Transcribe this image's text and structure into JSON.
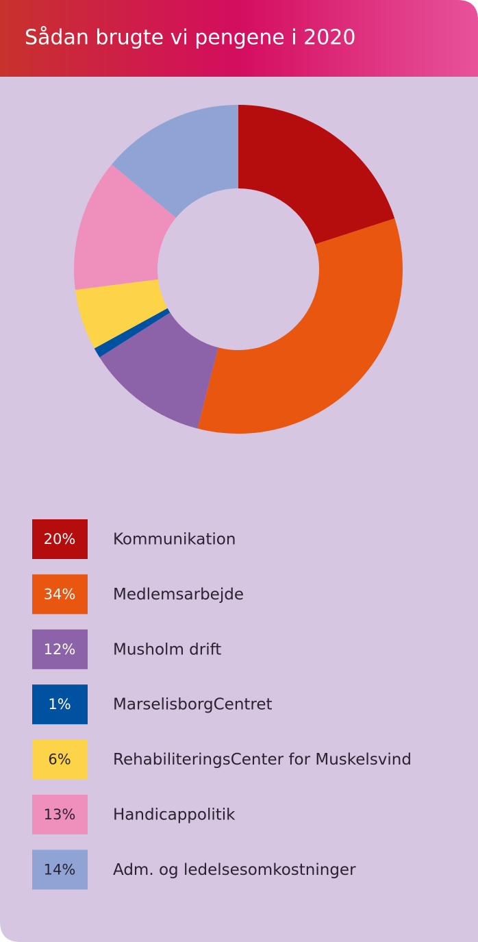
{
  "chart_data": {
    "type": "pie",
    "title": "Sådan brugte vi pengene i 2020",
    "categories": [
      "Kommunikation",
      "Medlemsarbejde",
      "Musholm drift",
      "MarselisborgCentret",
      "RehabiliteringsCenter for Muskelsvind",
      "Handicappolitik",
      "Adm. og ledelsesomkostninger"
    ],
    "values": [
      20,
      34,
      12,
      1,
      6,
      13,
      14
    ],
    "value_labels": [
      "20%",
      "34%",
      "12%",
      "1%",
      "6%",
      "13%",
      "14%"
    ],
    "colors": [
      "#b50d0d",
      "#e8560f",
      "#8c62a8",
      "#0052a0",
      "#fdd447",
      "#ef8fbc",
      "#8fa3d5"
    ],
    "donut": true
  }
}
